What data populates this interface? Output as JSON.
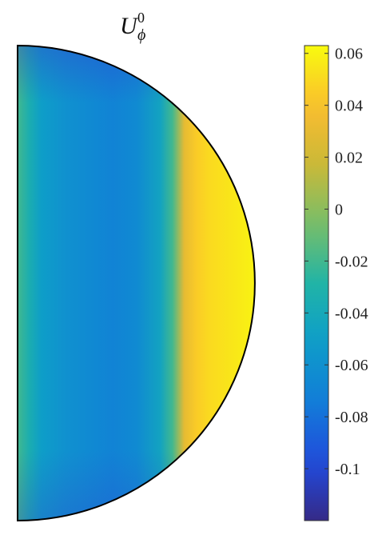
{
  "chart_data": {
    "type": "heatmap",
    "title": {
      "base": "U",
      "superscript": "0",
      "subscript": "ϕ"
    },
    "domain": "half-disk (right half of a circle)",
    "colormap": "parula",
    "colorbar": {
      "range": [
        -0.12,
        0.063
      ],
      "ticks": [
        0.06,
        0.04,
        0.02,
        0,
        -0.02,
        -0.04,
        -0.06,
        -0.08,
        -0.1
      ],
      "tick_labels": [
        "0.06",
        "0.04",
        "0.02",
        "0",
        "-0.02",
        "-0.04",
        "-0.06",
        "-0.08",
        "-0.1"
      ]
    },
    "profile": {
      "r": [
        0.0,
        0.05,
        0.1,
        0.2,
        0.3,
        0.4,
        0.5,
        0.6,
        0.65,
        0.7,
        0.75,
        0.8,
        0.9,
        1.0
      ],
      "value": [
        -0.02,
        -0.035,
        -0.05,
        -0.06,
        -0.065,
        -0.07,
        -0.065,
        -0.045,
        -0.02,
        0.03,
        0.045,
        0.05,
        0.055,
        0.06
      ]
    }
  }
}
